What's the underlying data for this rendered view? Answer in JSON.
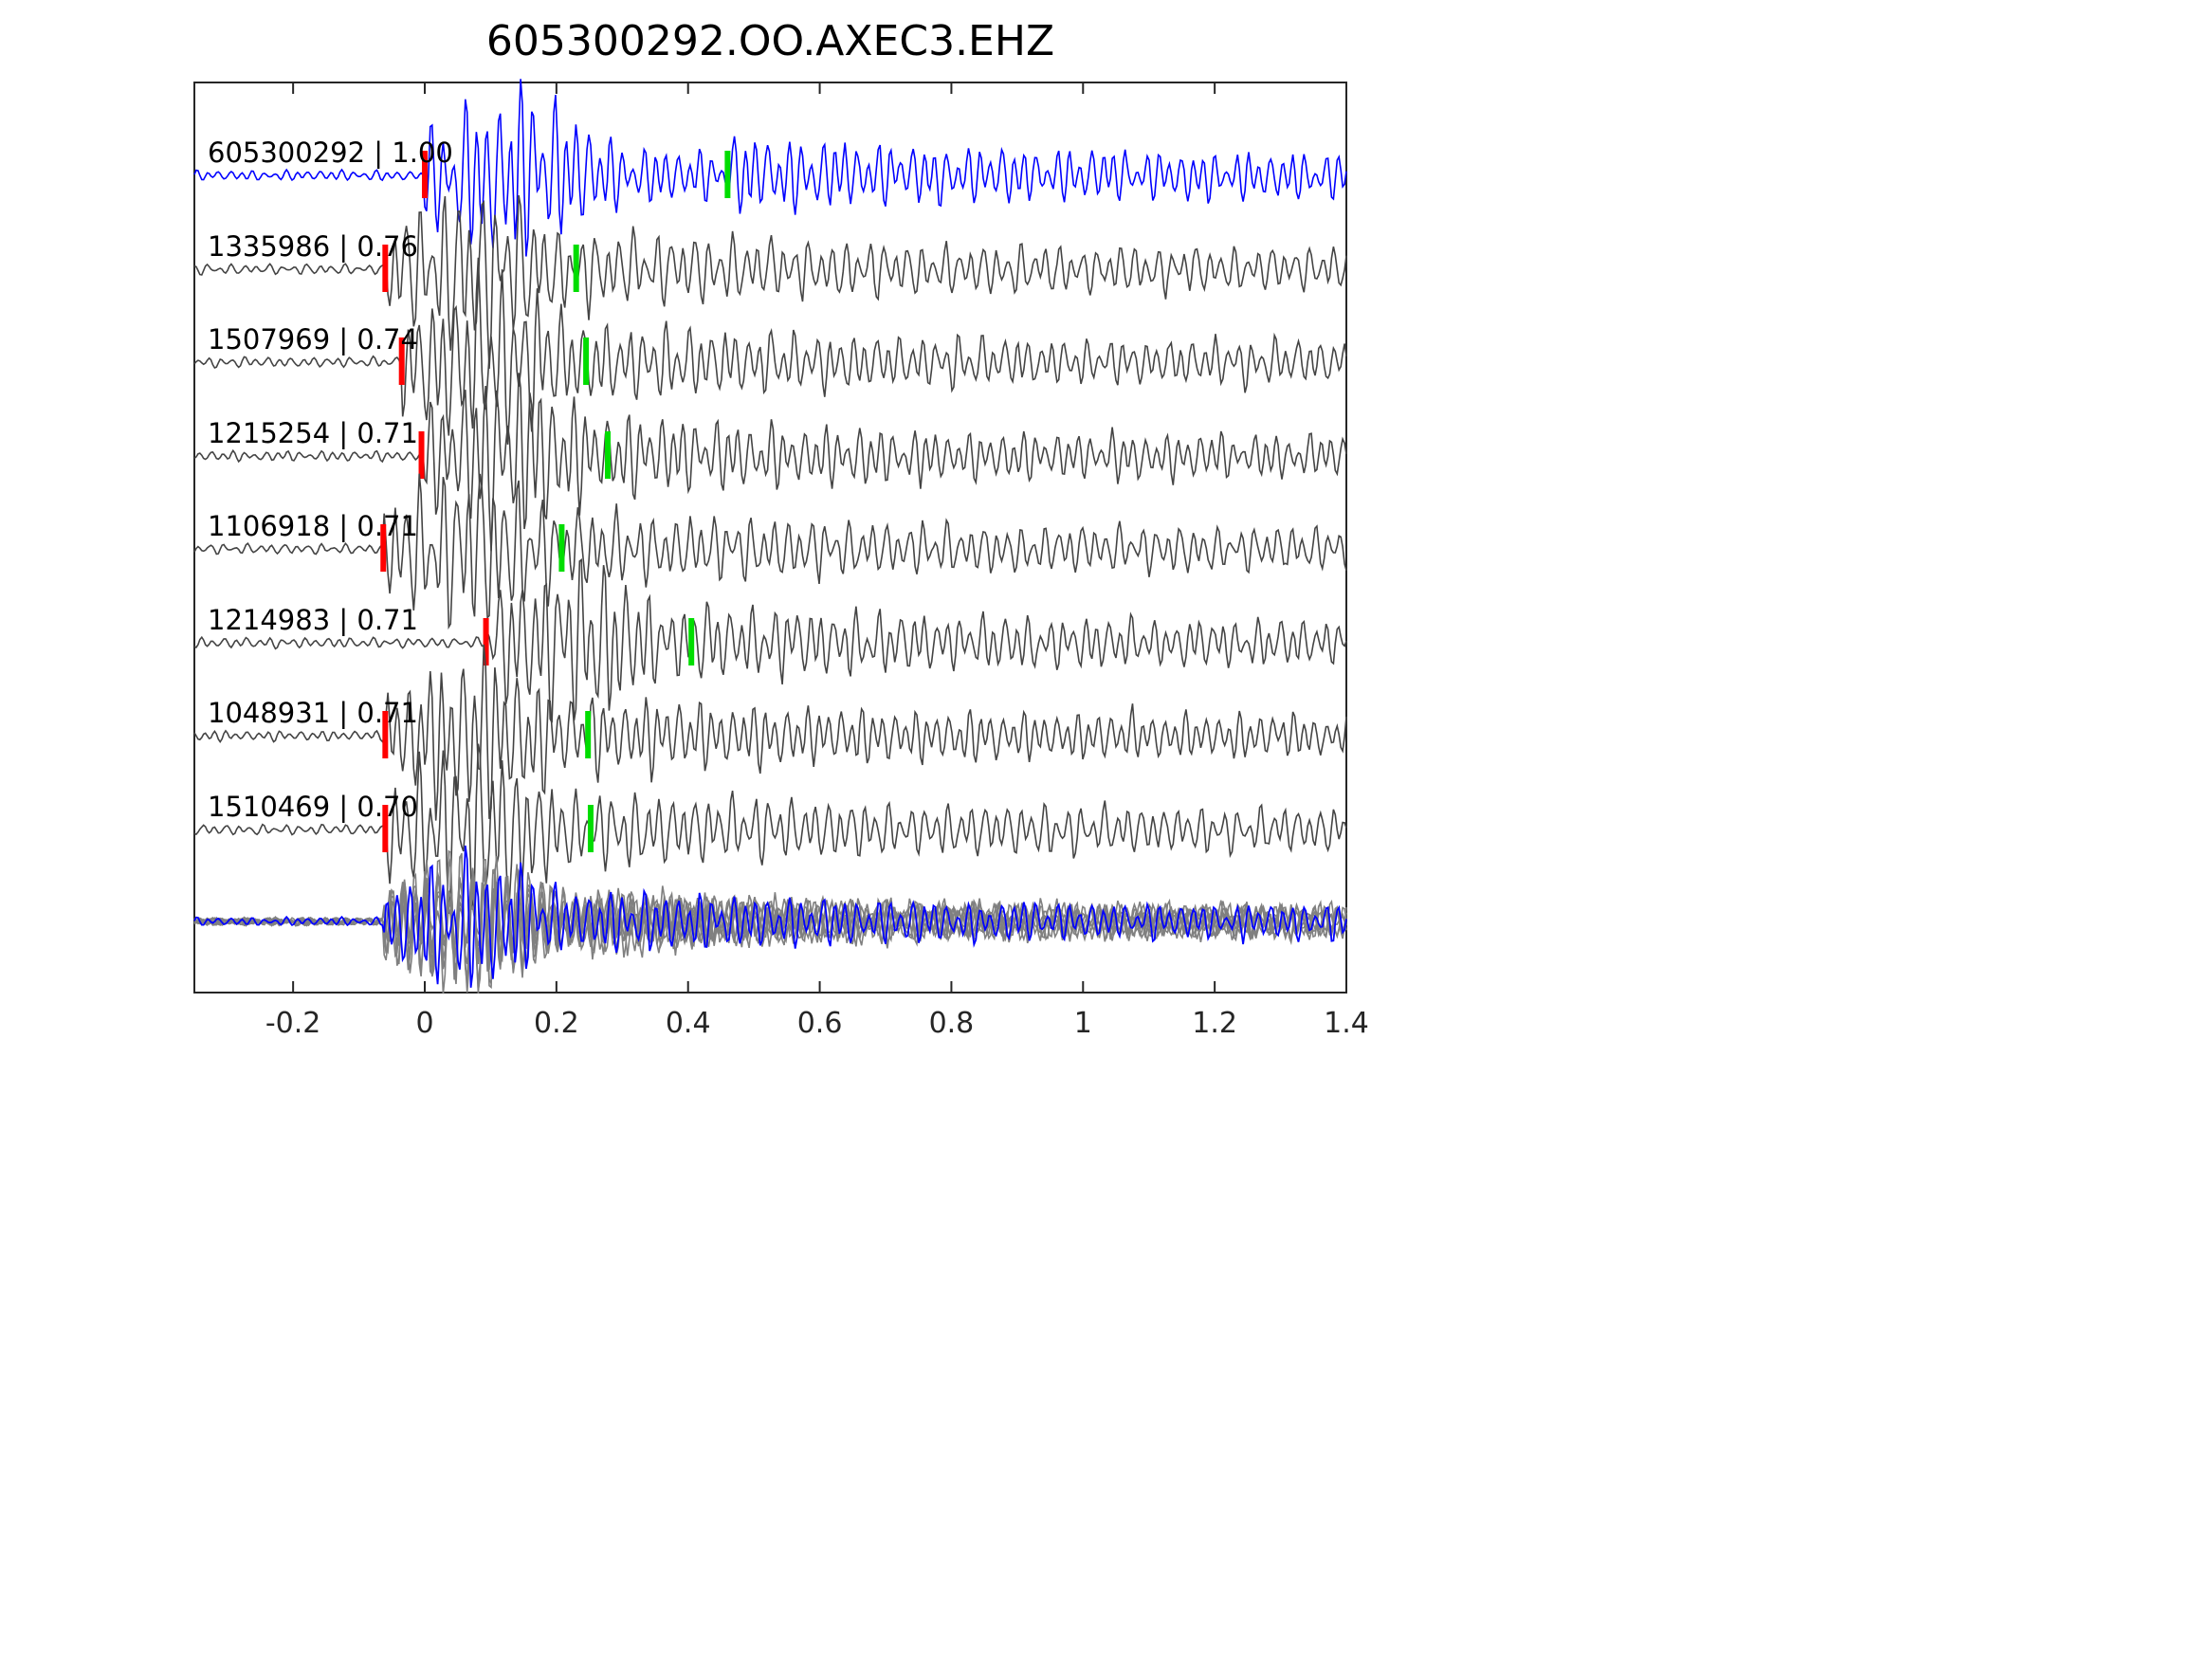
{
  "chart_data": {
    "type": "line",
    "title": "605300292.OO.AXEC3.EHZ",
    "xlabel": "",
    "ylabel": "",
    "xlim": [
      -0.35,
      1.4
    ],
    "xticks": [
      -0.2,
      0,
      0.2,
      0.4,
      0.6,
      0.8,
      1,
      1.2,
      1.4
    ],
    "xtick_labels": [
      "-0.2",
      "0",
      "0.2",
      "0.4",
      "0.6",
      "0.8",
      "1",
      "1.2",
      "1.4"
    ],
    "grid": false,
    "colors": {
      "reference": "#0000ff",
      "template": "#444444",
      "stack": "#808080",
      "p_pick": "#ff0000",
      "s_pick": "#00dd00"
    },
    "series": [
      {
        "id": "605300292",
        "cc": "1.00",
        "label": "605300292 | 1.00",
        "p_time": 0.0,
        "s_time": 0.46,
        "reference": true
      },
      {
        "id": "1335986",
        "cc": "0.76",
        "label": "1335986 | 0.76",
        "p_time": -0.06,
        "s_time": 0.23
      },
      {
        "id": "1507969",
        "cc": "0.74",
        "label": "1507969 | 0.74",
        "p_time": -0.035,
        "s_time": 0.245
      },
      {
        "id": "1215254",
        "cc": "0.71",
        "label": "1215254 | 0.71",
        "p_time": -0.005,
        "s_time": 0.278
      },
      {
        "id": "1106918",
        "cc": "0.71",
        "label": "1106918 | 0.71",
        "p_time": -0.063,
        "s_time": 0.208
      },
      {
        "id": "1214983",
        "cc": "0.71",
        "label": "1214983 | 0.71",
        "p_time": 0.093,
        "s_time": 0.405
      },
      {
        "id": "1048931",
        "cc": "0.71",
        "label": "1048931 | 0.71",
        "p_time": -0.06,
        "s_time": 0.248
      },
      {
        "id": "1510469",
        "cc": "0.70",
        "label": "1510469 | 0.70",
        "p_time": -0.06,
        "s_time": 0.252
      }
    ],
    "overlay": {
      "description": "stacked overlay of all traces aligned"
    }
  }
}
